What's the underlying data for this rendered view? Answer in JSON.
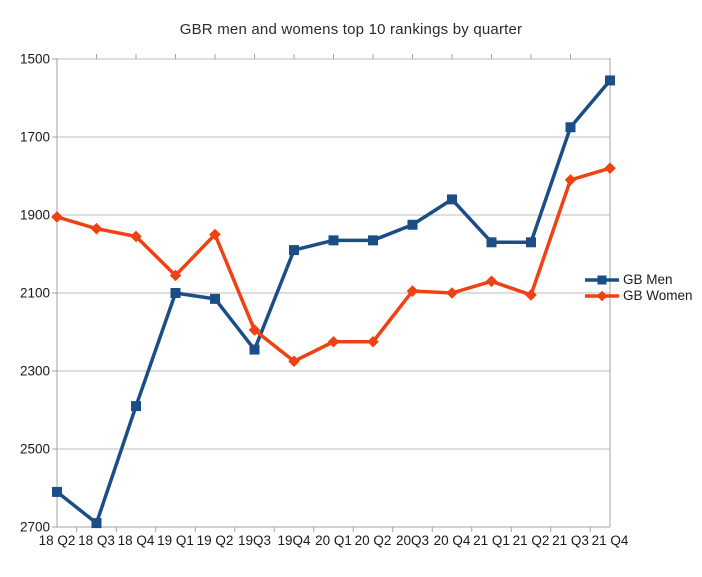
{
  "chart_data": {
    "type": "line",
    "title": "GBR men and womens top 10 rankings by quarter",
    "categories": [
      "18 Q2",
      "18 Q3",
      "18 Q4",
      "19 Q1",
      "19 Q2",
      "19Q3",
      "19Q4",
      "20 Q1",
      "20 Q2",
      "20Q3",
      "20 Q4",
      "21 Q1",
      "21 Q2",
      "21 Q3",
      "21 Q4"
    ],
    "series": [
      {
        "name": "GB Men",
        "marker": "square",
        "color": "#1B4E87",
        "values": [
          2610,
          2690,
          2390,
          2100,
          2115,
          2245,
          1990,
          1965,
          1965,
          1925,
          1860,
          1970,
          1970,
          1675,
          1555
        ]
      },
      {
        "name": "GB Women",
        "marker": "diamond",
        "color": "#EF4214",
        "values": [
          1905,
          1935,
          1955,
          2055,
          1950,
          2195,
          2275,
          2225,
          2225,
          2095,
          2100,
          2070,
          2105,
          1810,
          1780
        ]
      }
    ],
    "y_axis": {
      "min": 1500,
      "max": 2700,
      "tick_interval": 200,
      "inverted_scale": true,
      "ticks": [
        1500,
        1700,
        1900,
        2100,
        2300,
        2500,
        2700
      ]
    },
    "x_axis": {
      "label": "",
      "tick_marks": "interval"
    },
    "grid": "horizontal",
    "legend_position": "right-middle",
    "colors": {
      "grid_line": "#bdbdbd",
      "axis_line": "#a3a3a3",
      "text": "#1a1a1a",
      "background": "#ffffff"
    }
  }
}
